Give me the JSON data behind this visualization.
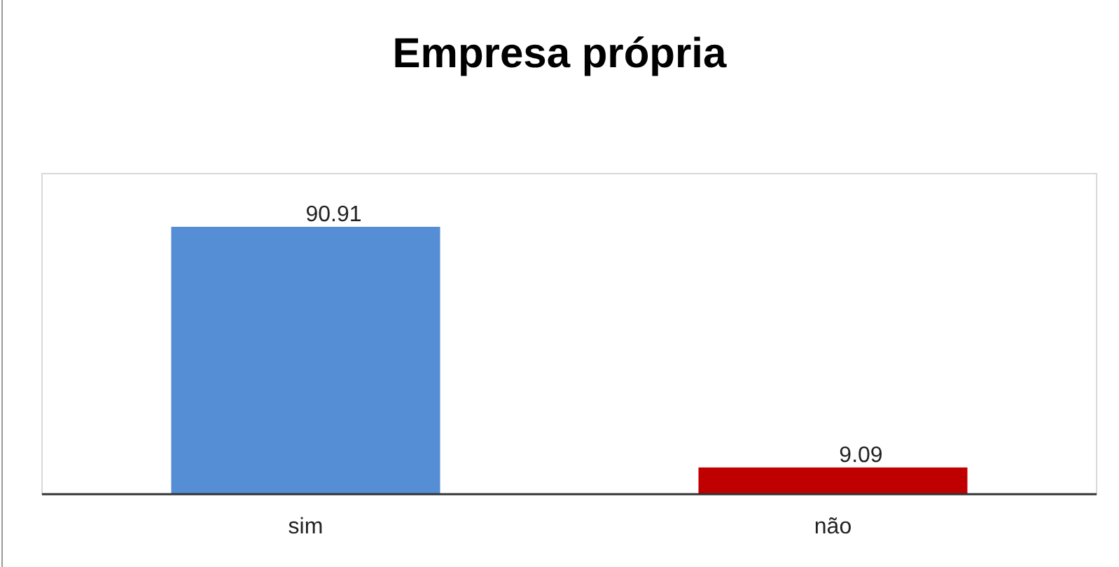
{
  "chart_data": {
    "type": "bar",
    "title": "Empresa própria",
    "categories": [
      "sim",
      "não"
    ],
    "values": [
      90.91,
      9.09
    ],
    "colors": [
      "#558ed5",
      "#c00000"
    ],
    "data_labels": true,
    "tick_labels": "x"
  }
}
